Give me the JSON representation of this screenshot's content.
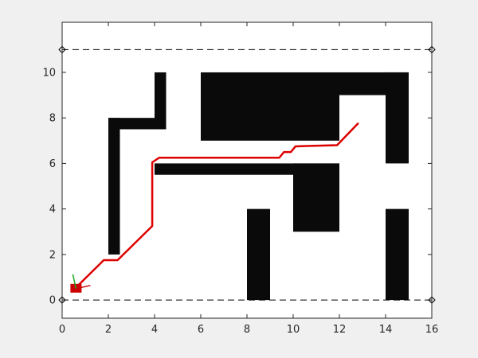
{
  "chart_data": {
    "type": "line",
    "title": "",
    "xlabel": "",
    "ylabel": "",
    "xlim": [
      0,
      16
    ],
    "ylim": [
      -0.8,
      12.2
    ],
    "grid": false,
    "x_ticks": [
      0,
      2,
      4,
      6,
      8,
      10,
      12,
      14,
      16
    ],
    "y_ticks": [
      0,
      2,
      4,
      6,
      8,
      10
    ],
    "boundary_lines": [
      {
        "name": "",
        "y": 0,
        "x_start": 0,
        "x_end": 16,
        "style": "dashed",
        "color": "#000000"
      },
      {
        "name": "",
        "y": 11,
        "x_start": 0,
        "x_end": 16,
        "style": "dashed",
        "color": "#000000"
      }
    ],
    "obstacles": [
      {
        "x0": 2.0,
        "y0": 2.0,
        "x1": 2.5,
        "y1": 8.0
      },
      {
        "x0": 2.0,
        "y0": 7.5,
        "x1": 4.5,
        "y1": 8.0
      },
      {
        "x0": 4.0,
        "y0": 7.5,
        "x1": 4.5,
        "y1": 10.0
      },
      {
        "x0": 6.0,
        "y0": 7.0,
        "x1": 12.0,
        "y1": 10.0
      },
      {
        "x0": 12.0,
        "y0": 9.0,
        "x1": 15.0,
        "y1": 10.0
      },
      {
        "x0": 14.0,
        "y0": 6.0,
        "x1": 15.0,
        "y1": 10.0
      },
      {
        "x0": 4.0,
        "y0": 5.5,
        "x1": 12.0,
        "y1": 6.0
      },
      {
        "x0": 10.0,
        "y0": 3.0,
        "x1": 12.0,
        "y1": 6.0
      },
      {
        "x0": 8.0,
        "y0": 0.0,
        "x1": 9.0,
        "y1": 4.0
      },
      {
        "x0": 14.0,
        "y0": 0.0,
        "x1": 15.0,
        "y1": 4.0
      }
    ],
    "series": [
      {
        "name": "",
        "color": "#dd0000",
        "x": [
          0.6,
          1.8,
          2.4,
          3.9,
          3.9,
          4.2,
          9.4,
          9.6,
          9.9,
          10.1,
          11.9,
          12.8
        ],
        "y": [
          0.55,
          1.75,
          1.75,
          3.25,
          6.05,
          6.25,
          6.25,
          6.5,
          6.5,
          6.75,
          6.8,
          7.75
        ]
      }
    ],
    "robot": {
      "x": 0.6,
      "y": 0.5,
      "color": "#cc0000",
      "axis_x_color": "#cc0000",
      "axis_y_color": "#22aa22"
    }
  }
}
